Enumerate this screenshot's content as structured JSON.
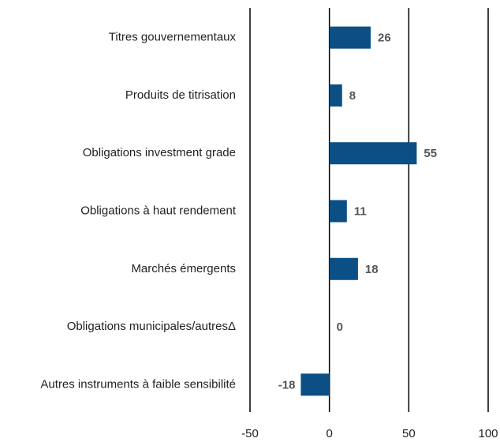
{
  "chart_data": {
    "type": "bar",
    "orientation": "horizontal",
    "categories": [
      "Titres gouvernementaux",
      "Produits de titrisation",
      "Obligations investment grade",
      "Obligations à haut rendement",
      "Marchés émergents",
      "Obligations municipales/autresΔ",
      "Autres instruments à faible sensibilité"
    ],
    "values": [
      26,
      8,
      55,
      11,
      18,
      0,
      -18
    ],
    "color": "#0b4f85",
    "xlim": [
      -50,
      100
    ],
    "xticks": [
      -50,
      0,
      50,
      100
    ],
    "grid": true
  }
}
